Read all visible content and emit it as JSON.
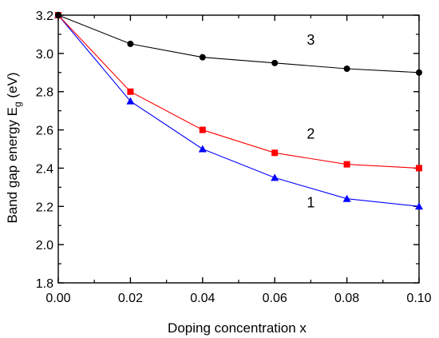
{
  "chart_data": {
    "type": "line",
    "title": "",
    "xlabel": "Doping concentration x",
    "ylabel": "Band gap energy E",
    "ylabel_subscript": "g",
    "ylabel_unit": " (eV)",
    "xlim": [
      0.0,
      0.1
    ],
    "ylim": [
      1.8,
      3.2
    ],
    "x_ticks": [
      "0.00",
      "0.02",
      "0.04",
      "0.06",
      "0.08",
      "0.10"
    ],
    "y_ticks": [
      "1.8",
      "2.0",
      "2.2",
      "2.4",
      "2.6",
      "2.8",
      "3.0",
      "3.2"
    ],
    "grid": false,
    "legend": "none",
    "x": [
      0.0,
      0.02,
      0.04,
      0.06,
      0.08,
      0.1
    ],
    "series": [
      {
        "label": "1",
        "marker": "triangle",
        "color": "#0000ff",
        "values": [
          3.2,
          2.75,
          2.5,
          2.35,
          2.24,
          2.2
        ]
      },
      {
        "label": "2",
        "marker": "square",
        "color": "#ff0000",
        "values": [
          3.2,
          2.8,
          2.6,
          2.48,
          2.42,
          2.4
        ]
      },
      {
        "label": "3",
        "marker": "circle",
        "color": "#000000",
        "values": [
          3.2,
          3.05,
          2.98,
          2.95,
          2.92,
          2.9
        ]
      }
    ]
  }
}
